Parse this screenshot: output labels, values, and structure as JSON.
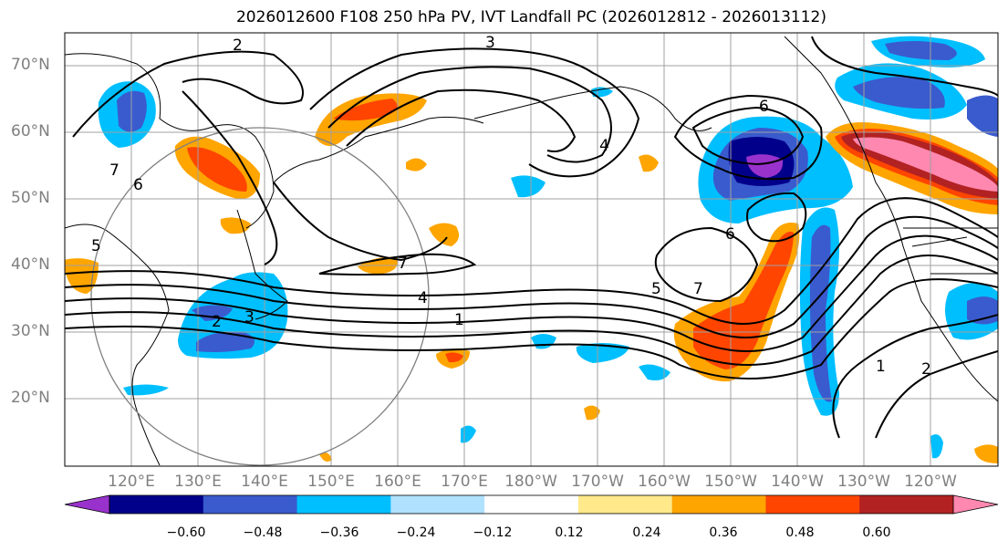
{
  "title": "2026012600 F108 250 hPa PV, IVT Landfall PC (2026012812 - 2026013112)",
  "lat_labels": [
    "70°N",
    "60°N",
    "50°N",
    "40°N",
    "30°N",
    "20°N"
  ],
  "lon_labels": [
    "120°E",
    "130°E",
    "140°E",
    "150°E",
    "160°E",
    "170°E",
    "180°W",
    "170°W",
    "160°W",
    "150°W",
    "140°W",
    "130°W",
    "120°W"
  ],
  "colorbar": {
    "ticks": [
      "−0.60",
      "−0.48",
      "−0.36",
      "−0.24",
      "−0.12",
      "0.12",
      "0.24",
      "0.36",
      "0.48",
      "0.60"
    ],
    "colors": [
      "#9932cc",
      "#00008b",
      "#3a5bcd",
      "#00bfff",
      "#b0e2ff",
      "#ffffff",
      "#ffe98a",
      "#ffa500",
      "#ff4500",
      "#b22222",
      "#ff88b0"
    ]
  },
  "contour_labels": [
    "3",
    "2",
    "7",
    "6",
    "5",
    "2",
    "3",
    "4",
    "1",
    "7",
    "4",
    "6",
    "6",
    "5",
    "7",
    "1",
    "2"
  ],
  "legend_note": ""
}
